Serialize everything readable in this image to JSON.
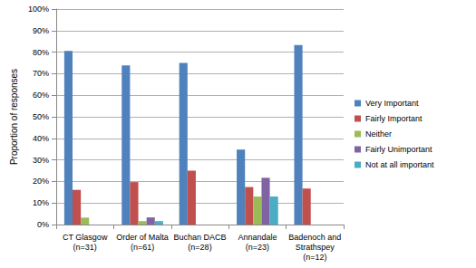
{
  "chart_data": {
    "type": "bar",
    "y_label": "Proportion of responses",
    "categories": [
      "CT Glasgow\n(n=31)",
      "Order of Malta\n(n=61)",
      "Buchan DACB\n(n=28)",
      "Annandale\n(n=23)",
      "Badenoch and\nStrathspey\n(n=12)"
    ],
    "series": [
      {
        "name": "Very Important",
        "color": "#4f81bd",
        "values": [
          80.6,
          73.8,
          75,
          34.8,
          83.3
        ]
      },
      {
        "name": "Fairly Important",
        "color": "#c0504d",
        "values": [
          16.1,
          19.7,
          25,
          17.4,
          16.7
        ]
      },
      {
        "name": "Neither",
        "color": "#9bbb59",
        "values": [
          3.2,
          1.6,
          0,
          13,
          0
        ]
      },
      {
        "name": "Fairly Unimportant",
        "color": "#8064a2",
        "values": [
          0,
          3.3,
          0,
          21.7,
          0
        ]
      },
      {
        "name": "Not at all important",
        "color": "#4bacc6",
        "values": [
          0,
          1.6,
          0,
          13,
          0
        ]
      }
    ],
    "ylim": [
      0,
      100
    ],
    "yticks": [
      {
        "value": 0,
        "label": "0%"
      },
      {
        "value": 10,
        "label": "10%"
      },
      {
        "value": 20,
        "label": "20%"
      },
      {
        "value": 30,
        "label": "30%"
      },
      {
        "value": 40,
        "label": "40%"
      },
      {
        "value": 50,
        "label": "50%"
      },
      {
        "value": 60,
        "label": "60%"
      },
      {
        "value": 70,
        "label": "70%"
      },
      {
        "value": 80,
        "label": "80%"
      },
      {
        "value": 90,
        "label": "90%"
      },
      {
        "value": 100,
        "label": "100%"
      }
    ],
    "grid": true,
    "legend": "right"
  }
}
